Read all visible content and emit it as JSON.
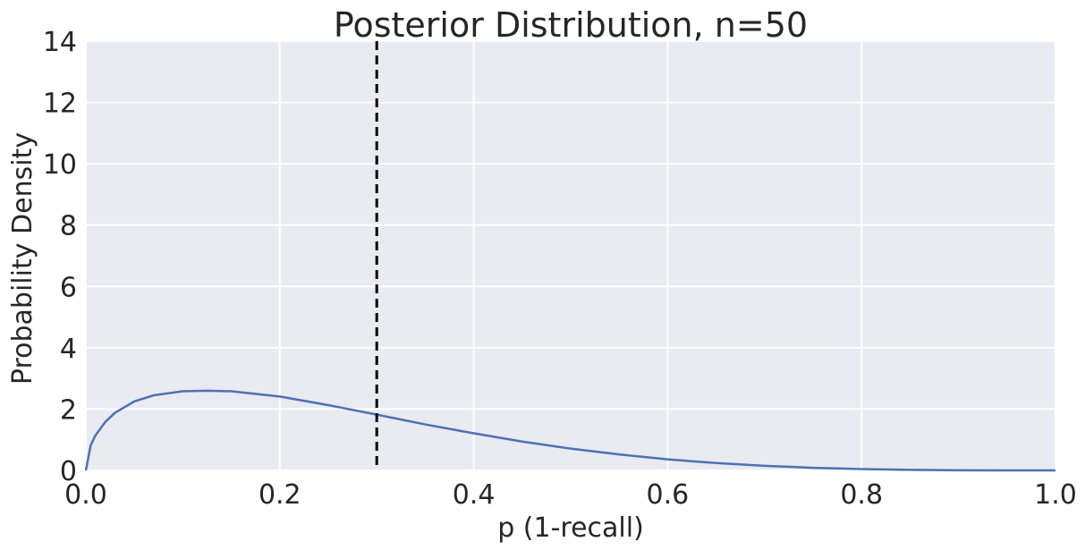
{
  "chart_data": {
    "type": "line",
    "title": "Posterior Distribution, n=50",
    "xlabel": "p (1-recall)",
    "ylabel": "Probability Density",
    "xlim": [
      0.0,
      1.0
    ],
    "ylim": [
      0,
      14
    ],
    "xticks": [
      "0.0",
      "0.2",
      "0.4",
      "0.6",
      "0.8",
      "1.0"
    ],
    "yticks": [
      "0",
      "2",
      "4",
      "6",
      "8",
      "10",
      "12",
      "14"
    ],
    "grid": true,
    "colors": {
      "line": "#4c72b0",
      "vline": "#000000",
      "background": "#eaeaf2",
      "grid": "#ffffff"
    },
    "series": [
      {
        "x": [
          0.0,
          0.005,
          0.01,
          0.02,
          0.03,
          0.05,
          0.07,
          0.1,
          0.125,
          0.15,
          0.2,
          0.25,
          0.3,
          0.35,
          0.4,
          0.45,
          0.5,
          0.55,
          0.6,
          0.65,
          0.7,
          0.75,
          0.8,
          0.85,
          0.9,
          0.95,
          1.0
        ],
        "values": [
          0.0,
          0.82,
          1.15,
          1.58,
          1.88,
          2.25,
          2.45,
          2.58,
          2.6,
          2.58,
          2.41,
          2.13,
          1.82,
          1.5,
          1.21,
          0.94,
          0.71,
          0.52,
          0.36,
          0.24,
          0.15,
          0.085,
          0.042,
          0.017,
          0.005,
          0.001,
          0.0
        ]
      }
    ],
    "vline": {
      "x": 0.3,
      "style": "dashed"
    }
  }
}
